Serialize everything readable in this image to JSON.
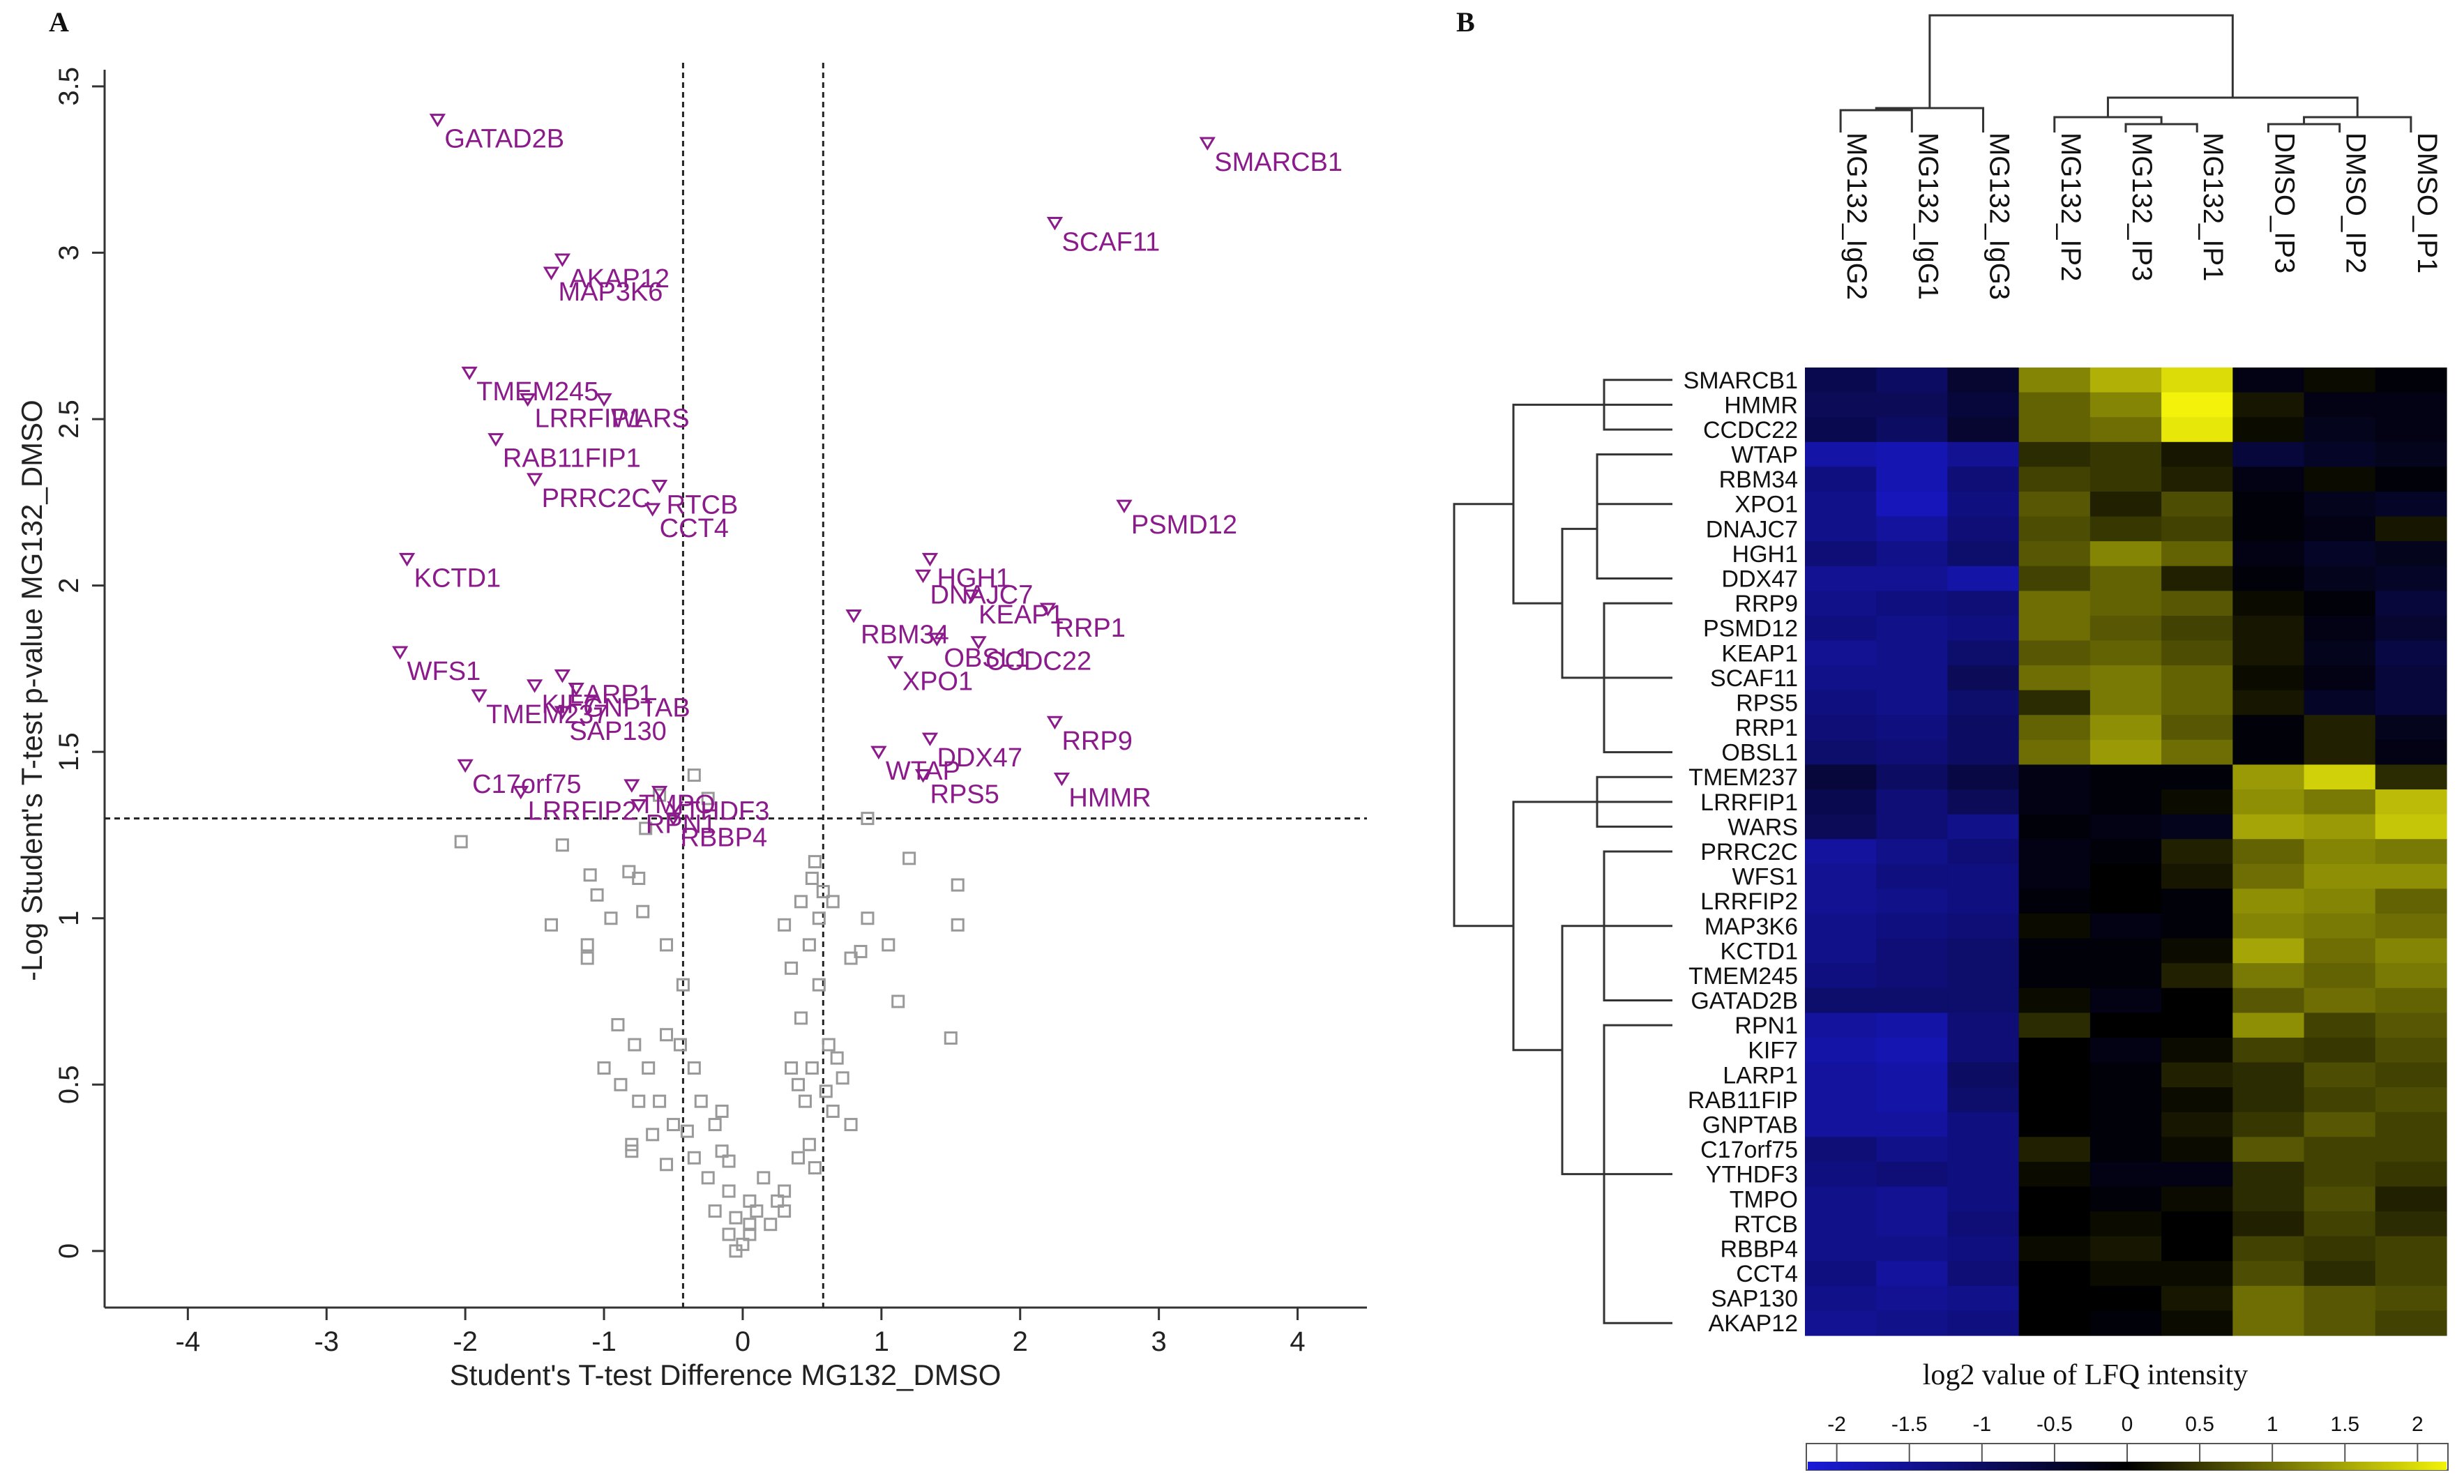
{
  "panels": {
    "a_label": "A",
    "b_label": "B"
  },
  "chart_data": [
    {
      "type": "scatter",
      "xlabel": "Student's T-test Difference MG132_DMSO",
      "ylabel": "-Log Student's T-test p-value MG132_DMSO",
      "xlim": [
        -4.6,
        4.5
      ],
      "ylim": [
        -0.17,
        3.55
      ],
      "xticks": [
        -4,
        -3,
        -2,
        -1,
        0,
        1,
        2,
        3,
        4
      ],
      "yticks": [
        0,
        0.5,
        1,
        1.5,
        2,
        2.5,
        3,
        3.5
      ],
      "thresholds": {
        "x_left": -0.43,
        "x_right": 0.58,
        "y": 1.3
      },
      "grid": false,
      "significant": [
        {
          "name": "GATAD2B",
          "x": -2.2,
          "y": 3.4
        },
        {
          "name": "SMARCB1",
          "x": 3.35,
          "y": 3.33
        },
        {
          "name": "SCAF11",
          "x": 2.25,
          "y": 3.09
        },
        {
          "name": "AKAP12",
          "x": -1.3,
          "y": 2.98
        },
        {
          "name": "MAP3K6",
          "x": -1.38,
          "y": 2.94
        },
        {
          "name": "TMEM245",
          "x": -1.97,
          "y": 2.64
        },
        {
          "name": "LRRFIP1",
          "x": -1.55,
          "y": 2.56
        },
        {
          "name": "WARS",
          "x": -1.0,
          "y": 2.56
        },
        {
          "name": "RAB11FIP1",
          "x": -1.78,
          "y": 2.44
        },
        {
          "name": "PRRC2C",
          "x": -1.5,
          "y": 2.32
        },
        {
          "name": "RTCB",
          "x": -0.6,
          "y": 2.3
        },
        {
          "name": "CCT4",
          "x": -0.65,
          "y": 2.23
        },
        {
          "name": "PSMD12",
          "x": 2.75,
          "y": 2.24
        },
        {
          "name": "KCTD1",
          "x": -2.42,
          "y": 2.08
        },
        {
          "name": "HGH1",
          "x": 1.35,
          "y": 2.08
        },
        {
          "name": "DNAJC7",
          "x": 1.3,
          "y": 2.03
        },
        {
          "name": "KEAP1",
          "x": 1.65,
          "y": 1.97
        },
        {
          "name": "RRP1",
          "x": 2.2,
          "y": 1.93
        },
        {
          "name": "RBM34",
          "x": 0.8,
          "y": 1.91
        },
        {
          "name": "OBSL1",
          "x": 1.4,
          "y": 1.84
        },
        {
          "name": "CCDC22",
          "x": 1.7,
          "y": 1.83
        },
        {
          "name": "XPO1",
          "x": 1.1,
          "y": 1.77
        },
        {
          "name": "WFS1",
          "x": -2.47,
          "y": 1.8
        },
        {
          "name": "LARP1",
          "x": -1.3,
          "y": 1.73
        },
        {
          "name": "GNPTAB",
          "x": -1.2,
          "y": 1.69
        },
        {
          "name": "KIF7",
          "x": -1.5,
          "y": 1.7
        },
        {
          "name": "TMEM237",
          "x": -1.9,
          "y": 1.67
        },
        {
          "name": "SAP130",
          "x": -1.3,
          "y": 1.62
        },
        {
          "name": "RRP9",
          "x": 2.25,
          "y": 1.59
        },
        {
          "name": "DDX47",
          "x": 1.35,
          "y": 1.54
        },
        {
          "name": "WTAP",
          "x": 0.98,
          "y": 1.5
        },
        {
          "name": "RPS5",
          "x": 1.3,
          "y": 1.43
        },
        {
          "name": "HMMR",
          "x": 2.3,
          "y": 1.42
        },
        {
          "name": "C17orf75",
          "x": -2.0,
          "y": 1.46
        },
        {
          "name": "LRRFIP2",
          "x": -1.6,
          "y": 1.38
        },
        {
          "name": "TMPO",
          "x": -0.8,
          "y": 1.4
        },
        {
          "name": "YTHDF3",
          "x": -0.6,
          "y": 1.38
        },
        {
          "name": "RPN1",
          "x": -0.75,
          "y": 1.34
        },
        {
          "name": "RBBP4",
          "x": -0.5,
          "y": 1.3
        }
      ],
      "nonsignificant": [
        [
          -2.03,
          1.23
        ],
        [
          -1.3,
          1.22
        ],
        [
          -1.1,
          1.13
        ],
        [
          -0.82,
          1.14
        ],
        [
          -0.75,
          1.12
        ],
        [
          -1.05,
          1.07
        ],
        [
          -0.95,
          1.0
        ],
        [
          -1.38,
          0.98
        ],
        [
          -1.12,
          0.92
        ],
        [
          -1.12,
          0.88
        ],
        [
          -0.72,
          1.02
        ],
        [
          -0.55,
          0.92
        ],
        [
          -0.43,
          0.8
        ],
        [
          -0.9,
          0.68
        ],
        [
          -0.78,
          0.62
        ],
        [
          -0.55,
          0.65
        ],
        [
          -0.45,
          0.62
        ],
        [
          -1.0,
          0.55
        ],
        [
          -0.88,
          0.5
        ],
        [
          -0.68,
          0.55
        ],
        [
          -0.6,
          0.45
        ],
        [
          -0.75,
          0.45
        ],
        [
          -0.35,
          0.55
        ],
        [
          -0.3,
          0.45
        ],
        [
          -0.65,
          0.35
        ],
        [
          -0.8,
          0.32
        ],
        [
          -0.5,
          0.38
        ],
        [
          -0.4,
          0.36
        ],
        [
          -0.2,
          0.38
        ],
        [
          -0.15,
          0.42
        ],
        [
          -0.35,
          0.28
        ],
        [
          -0.55,
          0.26
        ],
        [
          -0.8,
          0.3
        ],
        [
          -0.15,
          0.3
        ],
        [
          -0.25,
          0.22
        ],
        [
          -0.1,
          0.18
        ],
        [
          -0.2,
          0.12
        ],
        [
          -0.05,
          0.1
        ],
        [
          0.05,
          0.08
        ],
        [
          -0.1,
          0.05
        ],
        [
          0.0,
          0.02
        ],
        [
          0.05,
          0.05
        ],
        [
          -0.05,
          0.0
        ],
        [
          0.1,
          0.12
        ],
        [
          0.2,
          0.08
        ],
        [
          0.25,
          0.15
        ],
        [
          0.3,
          0.12
        ],
        [
          0.3,
          0.18
        ],
        [
          0.4,
          0.28
        ],
        [
          0.48,
          0.32
        ],
        [
          0.52,
          0.25
        ],
        [
          0.45,
          0.45
        ],
        [
          0.35,
          0.55
        ],
        [
          0.4,
          0.5
        ],
        [
          0.5,
          0.55
        ],
        [
          0.6,
          0.48
        ],
        [
          0.65,
          0.42
        ],
        [
          0.72,
          0.52
        ],
        [
          0.78,
          0.38
        ],
        [
          0.62,
          0.62
        ],
        [
          0.68,
          0.58
        ],
        [
          0.42,
          0.7
        ],
        [
          0.55,
          0.8
        ],
        [
          0.35,
          0.85
        ],
        [
          0.48,
          0.92
        ],
        [
          0.55,
          1.0
        ],
        [
          0.3,
          0.98
        ],
        [
          0.42,
          1.05
        ],
        [
          0.5,
          1.12
        ],
        [
          0.58,
          1.08
        ],
        [
          0.52,
          1.17
        ],
        [
          0.65,
          1.05
        ],
        [
          0.78,
          0.88
        ],
        [
          0.85,
          0.9
        ],
        [
          0.9,
          1.0
        ],
        [
          1.05,
          0.92
        ],
        [
          1.12,
          0.75
        ],
        [
          1.2,
          1.18
        ],
        [
          1.55,
          0.98
        ],
        [
          1.55,
          1.1
        ],
        [
          1.5,
          0.64
        ],
        [
          0.9,
          1.3
        ],
        [
          -0.35,
          1.43
        ],
        [
          -0.6,
          1.37
        ],
        [
          -0.7,
          1.27
        ],
        [
          -0.25,
          1.36
        ],
        [
          0.05,
          0.15
        ],
        [
          -0.1,
          0.27
        ],
        [
          0.15,
          0.22
        ]
      ]
    },
    {
      "type": "heatmap",
      "columns": [
        "MG132_IgG2",
        "MG132_IgG1",
        "MG132_IgG3",
        "MG132_IP2",
        "MG132_IP3",
        "MG132_IP1",
        "DMSO_IP3",
        "DMSO_IP2",
        "DMSO_IP1"
      ],
      "rows": [
        "SMARCB1",
        "HMMR",
        "CCDC22",
        "WTAP",
        "RBM34",
        "XPO1",
        "DNAJC7",
        "HGH1",
        "DDX47",
        "RRP9",
        "PSMD12",
        "KEAP1",
        "SCAF11",
        "RPS5",
        "RRP1",
        "OBSL1",
        "TMEM237",
        "LRRFIP1",
        "WARS",
        "PRRC2C",
        "WFS1",
        "LRRFIP2",
        "MAP3K6",
        "KCTD1",
        "TMEM245",
        "GATAD2B",
        "RPN1",
        "KIF7",
        "LARP1",
        "RAB11FIP",
        "GNPTAB",
        "C17orf75",
        "YTHDF3",
        "TMPO",
        "RTCB",
        "RBBP4",
        "CCT4",
        "SAP130",
        "AKAP12"
      ],
      "values": [
        [
          -0.8,
          -1.0,
          -0.5,
          1.2,
          1.6,
          2.0,
          -0.2,
          0.1,
          -0.1
        ],
        [
          -0.9,
          -0.9,
          -0.6,
          0.9,
          1.2,
          2.2,
          0.2,
          -0.2,
          -0.2
        ],
        [
          -0.8,
          -1.0,
          -0.5,
          0.9,
          1.0,
          2.1,
          0.1,
          -0.3,
          -0.2
        ],
        [
          -1.7,
          -1.8,
          -1.5,
          0.4,
          0.5,
          0.2,
          -0.6,
          -0.4,
          -0.3
        ],
        [
          -1.3,
          -1.8,
          -1.2,
          0.6,
          0.5,
          0.3,
          -0.2,
          0.1,
          -0.1
        ],
        [
          -1.4,
          -1.9,
          -1.3,
          0.8,
          0.3,
          0.7,
          -0.1,
          -0.3,
          -0.4
        ],
        [
          -1.4,
          -1.6,
          -1.2,
          0.7,
          0.5,
          0.6,
          -0.1,
          -0.2,
          0.2
        ],
        [
          -1.2,
          -1.4,
          -1.1,
          0.8,
          1.2,
          0.9,
          -0.2,
          -0.4,
          -0.3
        ],
        [
          -1.5,
          -1.5,
          -1.7,
          0.6,
          0.9,
          0.3,
          -0.1,
          -0.3,
          -0.4
        ],
        [
          -1.4,
          -1.3,
          -1.2,
          1.0,
          0.9,
          0.8,
          0.1,
          -0.1,
          -0.6
        ],
        [
          -1.3,
          -1.4,
          -1.3,
          1.0,
          0.8,
          0.6,
          0.2,
          -0.2,
          -0.5
        ],
        [
          -1.5,
          -1.4,
          -1.1,
          0.8,
          0.9,
          0.7,
          0.2,
          -0.3,
          -0.7
        ],
        [
          -1.4,
          -1.4,
          -0.9,
          1.0,
          1.1,
          0.9,
          0.1,
          -0.2,
          -0.6
        ],
        [
          -1.3,
          -1.4,
          -1.1,
          0.4,
          1.1,
          0.9,
          0.2,
          -0.4,
          -0.6
        ],
        [
          -1.2,
          -1.3,
          -1.0,
          0.9,
          1.3,
          0.8,
          -0.1,
          0.3,
          -0.3
        ],
        [
          -1.1,
          -1.2,
          -1.0,
          1.0,
          1.4,
          1.0,
          -0.1,
          0.3,
          -0.2
        ],
        [
          -0.6,
          -1.0,
          -0.7,
          -0.2,
          -0.1,
          -0.1,
          1.4,
          1.9,
          0.4
        ],
        [
          -0.8,
          -1.2,
          -0.9,
          -0.2,
          -0.1,
          0.1,
          1.3,
          1.1,
          1.7
        ],
        [
          -0.9,
          -1.2,
          -1.4,
          -0.1,
          -0.2,
          -0.3,
          1.5,
          1.4,
          1.8
        ],
        [
          -1.6,
          -1.4,
          -1.2,
          -0.2,
          -0.1,
          0.3,
          0.9,
          1.2,
          1.1
        ],
        [
          -1.5,
          -1.3,
          -1.3,
          -0.2,
          0.0,
          0.2,
          1.0,
          1.3,
          1.3
        ],
        [
          -1.5,
          -1.4,
          -1.3,
          -0.1,
          0.0,
          -0.1,
          1.3,
          1.2,
          0.9
        ],
        [
          -1.4,
          -1.3,
          -1.2,
          0.1,
          -0.2,
          -0.1,
          1.2,
          1.1,
          1.0
        ],
        [
          -1.4,
          -1.2,
          -1.1,
          -0.1,
          -0.1,
          0.1,
          1.5,
          1.0,
          1.2
        ],
        [
          -1.3,
          -1.2,
          -1.1,
          -0.1,
          -0.1,
          0.3,
          1.1,
          0.9,
          1.1
        ],
        [
          -1.1,
          -1.1,
          -1.1,
          0.1,
          -0.2,
          0.0,
          0.8,
          1.0,
          0.9
        ],
        [
          -1.6,
          -1.7,
          -1.2,
          0.4,
          0.0,
          0.0,
          1.3,
          0.6,
          0.8
        ],
        [
          -1.7,
          -1.8,
          -1.2,
          0.0,
          -0.2,
          0.1,
          0.6,
          0.5,
          0.7
        ],
        [
          -1.6,
          -1.7,
          -1.0,
          0.0,
          -0.1,
          0.3,
          0.4,
          0.7,
          0.6
        ],
        [
          -1.6,
          -1.7,
          -1.1,
          0.0,
          -0.1,
          0.1,
          0.4,
          0.6,
          0.7
        ],
        [
          -1.6,
          -1.6,
          -1.3,
          0.0,
          -0.1,
          0.2,
          0.5,
          0.8,
          0.6
        ],
        [
          -1.2,
          -1.4,
          -1.3,
          0.3,
          -0.1,
          0.1,
          0.8,
          0.6,
          0.6
        ],
        [
          -1.3,
          -1.2,
          -1.3,
          0.1,
          -0.2,
          -0.2,
          0.4,
          0.6,
          0.5
        ],
        [
          -1.4,
          -1.5,
          -1.3,
          0.0,
          -0.1,
          0.1,
          0.4,
          0.7,
          0.3
        ],
        [
          -1.4,
          -1.5,
          -1.2,
          0.0,
          0.1,
          0.0,
          0.3,
          0.6,
          0.4
        ],
        [
          -1.4,
          -1.4,
          -1.3,
          0.1,
          0.2,
          0.0,
          0.6,
          0.5,
          0.6
        ],
        [
          -1.3,
          -1.6,
          -1.2,
          0.0,
          0.1,
          0.1,
          0.7,
          0.4,
          0.6
        ],
        [
          -1.4,
          -1.5,
          -1.4,
          0.0,
          0.0,
          0.2,
          1.0,
          0.8,
          0.7
        ],
        [
          -1.5,
          -1.4,
          -1.3,
          0.0,
          -0.1,
          0.1,
          1.0,
          0.8,
          0.6
        ]
      ],
      "colorbar": {
        "title": "log2 value of LFQ intensity",
        "ticks": [
          -2,
          -1.5,
          -1,
          -0.5,
          0,
          0.5,
          1,
          1.5,
          2
        ],
        "tick_labels": [
          "-2",
          "-1.5",
          "-1",
          "-0.5",
          "0",
          "0.5",
          "1",
          "1.5",
          "2"
        ],
        "range": [
          -2.2,
          2.2
        ],
        "colors": {
          "low": "#1a1ad8",
          "mid": "#000000",
          "high": "#f2f20a"
        }
      }
    }
  ]
}
